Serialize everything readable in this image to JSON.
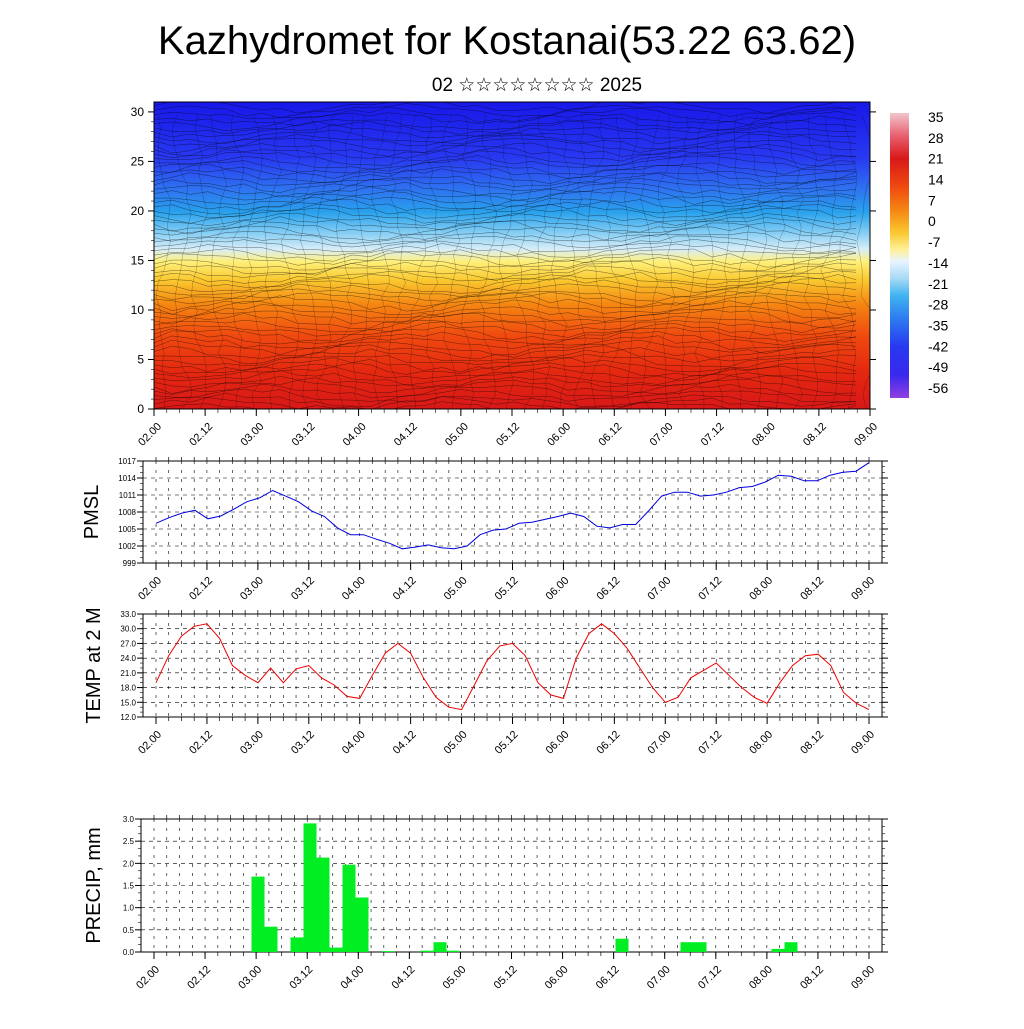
{
  "header": {
    "title": "Kazhydromet for Kostanai(53.22 63.62)",
    "subtitle": "02 ☆☆☆☆☆☆☆☆ 2025"
  },
  "chart_data": [
    {
      "id": "cross-section",
      "type": "heatmap",
      "xlabel": "",
      "ylabel": "",
      "x_ticks": [
        "02.00",
        "02.12",
        "03.00",
        "03.12",
        "04.00",
        "04.12",
        "05.00",
        "05.12",
        "06.00",
        "06.12",
        "07.00",
        "07.12",
        "08.00",
        "08.12",
        "09.00"
      ],
      "y_ticks": [
        0,
        5,
        10,
        15,
        20,
        25,
        30
      ],
      "ylim": [
        0,
        31
      ],
      "colorbar_labels": [
        "35",
        "28",
        "21",
        "14",
        "7",
        "0",
        "-7",
        "-14",
        "-21",
        "-28",
        "-35",
        "-42",
        "-49",
        "-56"
      ],
      "colorbar_colors": [
        "#f2c6cc",
        "#e8707a",
        "#d81818",
        "#e83010",
        "#f05010",
        "#f58010",
        "#f8a818",
        "#fbd040",
        "#fff09a",
        "#e8f4ff",
        "#a8daf6",
        "#58c0f0",
        "#28a0ec",
        "#2e7cf0",
        "#3858f0",
        "#2828f0",
        "#5a28e8",
        "#9040e0"
      ],
      "description_profile": [
        {
          "height": 0,
          "temp": 28
        },
        {
          "height": 5,
          "temp": 22
        },
        {
          "height": 10,
          "temp": 10
        },
        {
          "height": 13,
          "temp": 0
        },
        {
          "height": 16,
          "temp": -12
        },
        {
          "height": 19,
          "temp": -28
        },
        {
          "height": 22,
          "temp": -42
        },
        {
          "height": 25,
          "temp": -52
        },
        {
          "height": 31,
          "temp": -56
        }
      ]
    },
    {
      "id": "pmsl",
      "type": "line",
      "ylabel": "PMSL",
      "y_ticks": [
        "999",
        "1002",
        "1005",
        "1008",
        "1011",
        "1014",
        "1017"
      ],
      "ylim": [
        999,
        1017
      ],
      "x_ticks": [
        "02.00",
        "02.12",
        "03.00",
        "03.12",
        "04.00",
        "04.12",
        "05.00",
        "05.12",
        "06.00",
        "06.12",
        "07.00",
        "07.12",
        "08.00",
        "08.12",
        "09.00"
      ],
      "color": "#0000dd",
      "values": [
        1006.0,
        1007.0,
        1007.8,
        1008.3,
        1006.8,
        1007.3,
        1008.5,
        1009.8,
        1010.5,
        1011.8,
        1010.8,
        1009.8,
        1008.2,
        1007.2,
        1005.2,
        1004.0,
        1004.0,
        1003.2,
        1002.5,
        1001.5,
        1001.8,
        1002.2,
        1001.7,
        1001.5,
        1002.0,
        1004.0,
        1004.8,
        1005.0,
        1006.0,
        1006.2,
        1006.7,
        1007.2,
        1007.8,
        1007.2,
        1005.5,
        1005.2,
        1005.8,
        1005.8,
        1008.2,
        1010.8,
        1011.5,
        1011.5,
        1010.8,
        1011.0,
        1011.5,
        1012.3,
        1012.5,
        1013.3,
        1014.5,
        1014.3,
        1013.5,
        1013.5,
        1014.5,
        1015.0,
        1015.2,
        1016.7
      ]
    },
    {
      "id": "temp2m",
      "type": "line",
      "ylabel": "TEMP at 2 M",
      "y_ticks": [
        "12.0",
        "15.0",
        "18.0",
        "21.0",
        "24.0",
        "27.0",
        "30.0",
        "33.0"
      ],
      "ylim": [
        12,
        33
      ],
      "x_ticks": [
        "02.00",
        "02.12",
        "03.00",
        "03.12",
        "04.00",
        "04.12",
        "05.00",
        "05.12",
        "06.00",
        "06.12",
        "07.00",
        "07.12",
        "08.00",
        "08.12",
        "09.00"
      ],
      "color": "#ee0000",
      "values": [
        19.0,
        24.5,
        28.5,
        30.5,
        31.0,
        28.0,
        22.5,
        20.5,
        19.0,
        22.0,
        19.0,
        21.8,
        22.5,
        20.0,
        18.5,
        16.2,
        15.8,
        20.5,
        25.0,
        27.0,
        25.0,
        20.0,
        16.0,
        14.0,
        13.5,
        18.5,
        23.5,
        26.5,
        27.0,
        24.5,
        19.0,
        16.5,
        15.8,
        24.0,
        29.0,
        31.0,
        29.0,
        26.0,
        22.0,
        18.0,
        15.0,
        16.0,
        20.0,
        21.5,
        23.0,
        20.5,
        18.0,
        16.0,
        14.8,
        19.0,
        22.5,
        24.5,
        24.8,
        22.5,
        17.0,
        14.8,
        13.5
      ]
    },
    {
      "id": "precip",
      "type": "bar",
      "ylabel": "PRECIP, mm",
      "y_ticks": [
        "0.0",
        "0.5",
        "1.0",
        "1.5",
        "2.0",
        "2.5",
        "3.0"
      ],
      "ylim": [
        0,
        3
      ],
      "x_ticks": [
        "02.00",
        "02.12",
        "03.00",
        "03.12",
        "04.00",
        "04.12",
        "05.00",
        "05.12",
        "06.00",
        "06.12",
        "07.00",
        "07.12",
        "08.00",
        "08.12",
        "09.00"
      ],
      "color": "#00ee22",
      "values": [
        0,
        0,
        0,
        0,
        0,
        0,
        0,
        0,
        1.7,
        0.57,
        0,
        0.33,
        2.9,
        2.13,
        0.1,
        1.97,
        1.23,
        0,
        0.02,
        0,
        0,
        0.03,
        0.22,
        0.03,
        0,
        0,
        0,
        0,
        0,
        0,
        0,
        0,
        0,
        0,
        0,
        0,
        0.3,
        0,
        0,
        0,
        0,
        0.22,
        0.22,
        0,
        0,
        0,
        0,
        0,
        0.07,
        0.22,
        0,
        0,
        0,
        0,
        0,
        0
      ]
    }
  ]
}
